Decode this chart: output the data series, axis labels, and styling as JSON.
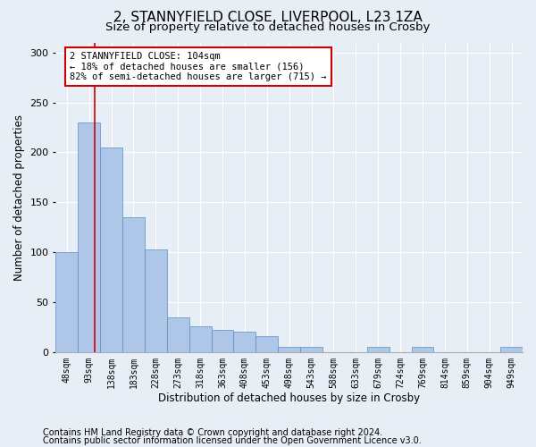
{
  "title1": "2, STANNYFIELD CLOSE, LIVERPOOL, L23 1ZA",
  "title2": "Size of property relative to detached houses in Crosby",
  "xlabel": "Distribution of detached houses by size in Crosby",
  "ylabel": "Number of detached properties",
  "footer1": "Contains HM Land Registry data © Crown copyright and database right 2024.",
  "footer2": "Contains public sector information licensed under the Open Government Licence v3.0.",
  "annotation_line1": "2 STANNYFIELD CLOSE: 104sqm",
  "annotation_line2": "← 18% of detached houses are smaller (156)",
  "annotation_line3": "82% of semi-detached houses are larger (715) →",
  "bar_color": "#aec6e8",
  "bar_edge_color": "#5a8fc2",
  "marker_color": "#cc0000",
  "annotation_box_color": "#cc0000",
  "background_color": "#e8eef5",
  "plot_bg_color": "#e8eef5",
  "grid_color": "#ffffff",
  "categories": [
    "48sqm",
    "93sqm",
    "138sqm",
    "183sqm",
    "228sqm",
    "273sqm",
    "318sqm",
    "363sqm",
    "408sqm",
    "453sqm",
    "498sqm",
    "543sqm",
    "588sqm",
    "633sqm",
    "679sqm",
    "724sqm",
    "769sqm",
    "814sqm",
    "859sqm",
    "904sqm",
    "949sqm"
  ],
  "values": [
    100,
    230,
    205,
    135,
    103,
    35,
    26,
    22,
    20,
    16,
    5,
    5,
    0,
    0,
    5,
    0,
    5,
    0,
    0,
    0,
    5
  ],
  "ylim": [
    0,
    310
  ],
  "yticks": [
    0,
    50,
    100,
    150,
    200,
    250,
    300
  ],
  "red_line_x": 1.25,
  "title1_fontsize": 11,
  "title2_fontsize": 9.5,
  "tick_fontsize": 7,
  "ylabel_fontsize": 8.5,
  "xlabel_fontsize": 8.5,
  "annotation_fontsize": 7.5,
  "footer_fontsize": 7.0
}
